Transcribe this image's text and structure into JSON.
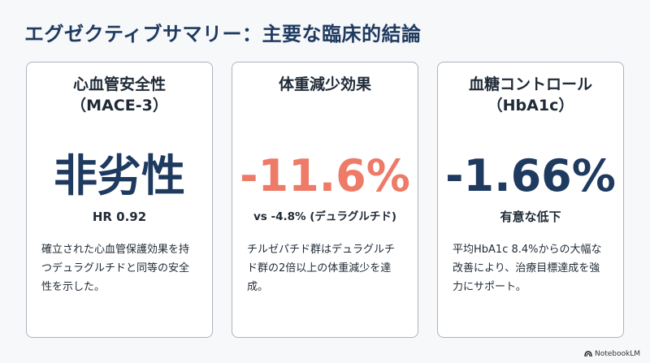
{
  "slide": {
    "title": "エグゼクティブサマリー：主要な臨床的結論"
  },
  "cards": [
    {
      "heading_line1": "心血管安全性",
      "heading_line2": "（MACE-3）",
      "metric": "非劣性",
      "metric_color": "#1e3a5f",
      "subtext": "HR 0.92",
      "description": "確立された心血管保護効果を持つデュラグルチドと同等の安全性を示した。"
    },
    {
      "heading_line1": "体重減少効果",
      "heading_line2": "",
      "metric": "-11.6%",
      "metric_color": "#ee7a68",
      "subtext": "vs -4.8% (デュラグルチド)",
      "description": "チルゼパチド群はデュラグルチド群の2倍以上の体重減少を達成。"
    },
    {
      "heading_line1": "血糖コントロール",
      "heading_line2": "（HbA1c）",
      "metric": "-1.66%",
      "metric_color": "#1e3a5f",
      "subtext": "有意な低下",
      "description": "平均HbA1c 8.4%からの大幅な改善により、治療目標達成を強力にサポート。"
    }
  ],
  "branding": {
    "label": "NotebookLM",
    "icon": "notebooklm-logo-icon"
  }
}
